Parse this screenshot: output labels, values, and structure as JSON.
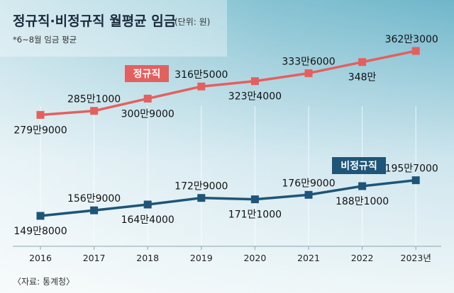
{
  "title": "정규직·비정규직 월평균 임금",
  "unit": "(단위: 원)",
  "note": "*6~8월 임금 평균",
  "source": "〈자료: 통계청〉",
  "colors": {
    "regular": "#e3605f",
    "irregular": "#1e5578",
    "background_top": "#6fb7ca",
    "background_bottom": "#eef6f8"
  },
  "chart_data": {
    "type": "line",
    "categories": [
      "2016",
      "2017",
      "2018",
      "2019",
      "2020",
      "2021",
      "2022",
      "2023년"
    ],
    "series": [
      {
        "name": "정규직",
        "values": [
          2799000,
          2851000,
          3009000,
          3165000,
          3234000,
          3336000,
          3480000,
          3623000
        ],
        "labels": [
          "279만9000",
          "285만1000",
          "300만9000",
          "316만5000",
          "323만4000",
          "333만6000",
          "348만",
          "362만3000"
        ]
      },
      {
        "name": "비정규직",
        "values": [
          1498000,
          1569000,
          1644000,
          1729000,
          1711000,
          1769000,
          1881000,
          1957000
        ],
        "labels": [
          "149만8000",
          "156만9000",
          "164만4000",
          "172만9000",
          "171만1000",
          "176만9000",
          "188만1000",
          "195만7000"
        ]
      }
    ],
    "grid": "vertical",
    "legend": "inline labels on lines"
  }
}
